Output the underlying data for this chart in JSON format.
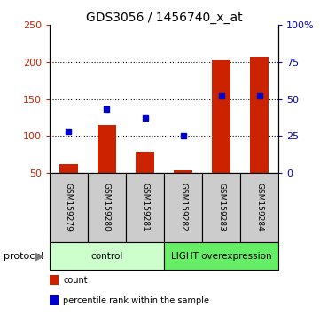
{
  "title": "GDS3056 / 1456740_x_at",
  "samples": [
    "GSM159279",
    "GSM159280",
    "GSM159281",
    "GSM159282",
    "GSM159283",
    "GSM159284"
  ],
  "red_bars": [
    62,
    115,
    78,
    53,
    202,
    207
  ],
  "blue_dots": [
    28,
    43,
    37,
    25,
    52,
    52
  ],
  "ylim_left": [
    50,
    250
  ],
  "ylim_right": [
    0,
    100
  ],
  "yticks_left": [
    50,
    100,
    150,
    200,
    250
  ],
  "yticks_right": [
    0,
    25,
    50,
    75,
    100
  ],
  "groups": [
    {
      "label": "control",
      "span": [
        0,
        2
      ],
      "color": "#ccffcc"
    },
    {
      "label": "LIGHT overexpression",
      "span": [
        3,
        5
      ],
      "color": "#66ee66"
    }
  ],
  "protocol_label": "protocol",
  "bar_color": "#cc2200",
  "dot_color": "#0000cc",
  "label_bg": "#cccccc",
  "bar_width": 0.5,
  "grid_dotted": [
    100,
    150,
    200
  ],
  "legend": [
    {
      "color": "#cc2200",
      "label": "count"
    },
    {
      "color": "#0000cc",
      "label": "percentile rank within the sample"
    }
  ]
}
